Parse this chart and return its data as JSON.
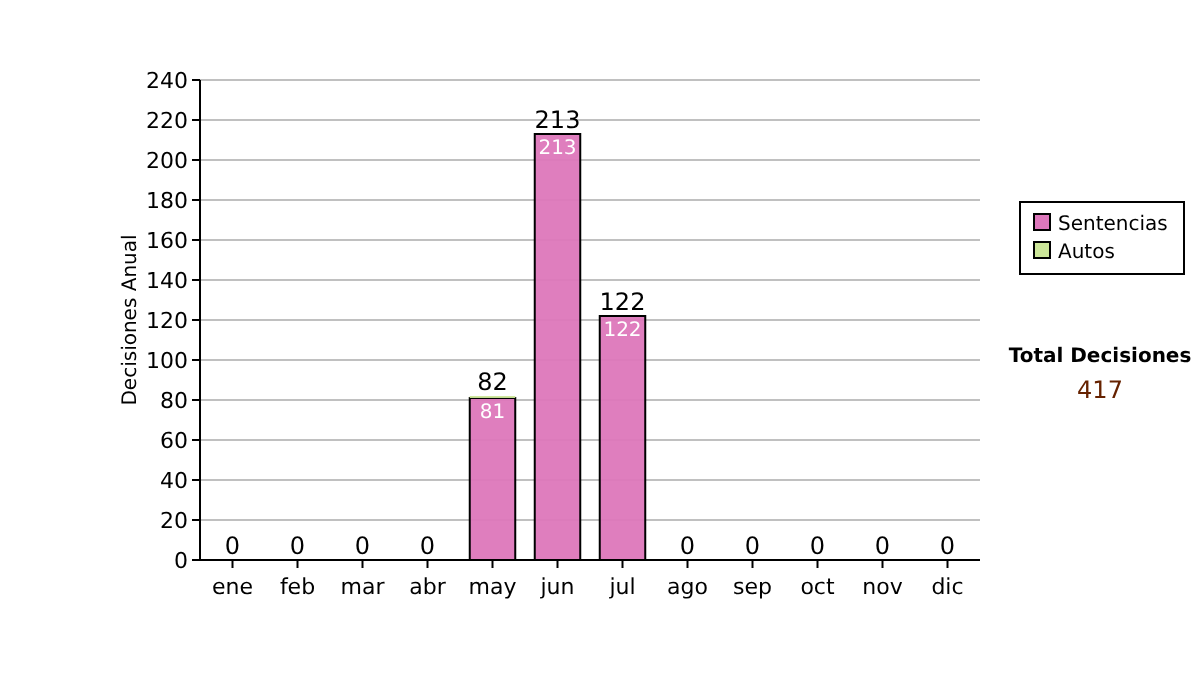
{
  "chart_data": {
    "type": "bar",
    "stacked": true,
    "ylabel": "Decisiones Anual",
    "categories": [
      "ene",
      "feb",
      "mar",
      "abr",
      "may",
      "jun",
      "jul",
      "ago",
      "sep",
      "oct",
      "nov",
      "dic"
    ],
    "series": [
      {
        "name": "Sentencias",
        "color": "#dd77bb",
        "values": [
          0,
          0,
          0,
          0,
          81,
          213,
          122,
          0,
          0,
          0,
          0,
          0
        ],
        "value_labels": [
          null,
          null,
          null,
          null,
          "81",
          "213",
          "122",
          null,
          null,
          null,
          null,
          null
        ]
      },
      {
        "name": "Autos",
        "color": "#cce699",
        "values": [
          0,
          0,
          0,
          0,
          1,
          0,
          0,
          0,
          0,
          0,
          0,
          0
        ]
      }
    ],
    "totals": [
      "0",
      "0",
      "0",
      "0",
      "82",
      "213",
      "122",
      "0",
      "0",
      "0",
      "0",
      "0"
    ],
    "ylim": [
      0,
      240
    ],
    "yticks": [
      0,
      20,
      40,
      60,
      80,
      100,
      120,
      140,
      160,
      180,
      200,
      220,
      240
    ],
    "grid": "y",
    "legend": "right",
    "annotations": [
      "Total Decisiones",
      "417"
    ]
  }
}
